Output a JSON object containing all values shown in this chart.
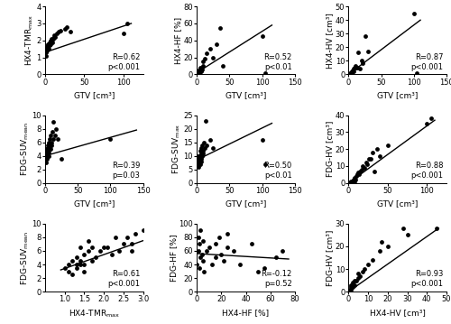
{
  "panels": [
    {
      "xlabel": "GTV [cm³]",
      "ylabel": "HX4-TMR$_\\mathrm{max}$",
      "xlim": [
        0,
        125
      ],
      "ylim": [
        0,
        4
      ],
      "xticks": [
        0,
        50,
        100
      ],
      "yticks": [
        0,
        1,
        2,
        3,
        4
      ],
      "R": "R=0.62",
      "p": "p<0.001",
      "x": [
        1,
        1,
        2,
        2,
        2,
        3,
        3,
        3,
        4,
        4,
        5,
        5,
        5,
        6,
        6,
        7,
        7,
        8,
        9,
        10,
        11,
        12,
        13,
        15,
        17,
        20,
        25,
        28,
        32,
        100,
        105
      ],
      "y": [
        1.1,
        1.3,
        1.5,
        1.6,
        1.4,
        1.5,
        1.6,
        1.7,
        1.6,
        1.8,
        1.5,
        1.7,
        1.8,
        1.7,
        1.9,
        1.8,
        2.0,
        2.1,
        1.9,
        2.1,
        2.2,
        2.3,
        2.2,
        2.4,
        2.5,
        2.6,
        2.7,
        2.8,
        2.5,
        2.4,
        3.0
      ],
      "line_x": [
        0,
        110
      ],
      "line_y": [
        1.3,
        3.0
      ]
    },
    {
      "xlabel": "GTV [cm³]",
      "ylabel": "HX4-HF [%]",
      "xlim": [
        0,
        150
      ],
      "ylim": [
        0,
        80
      ],
      "xticks": [
        0,
        50,
        100,
        150
      ],
      "yticks": [
        0,
        20,
        40,
        60,
        80
      ],
      "R": "R=0.52",
      "p": "p<0.01",
      "x": [
        1,
        1,
        1,
        2,
        2,
        2,
        2,
        3,
        3,
        4,
        4,
        5,
        5,
        6,
        7,
        8,
        9,
        10,
        12,
        15,
        20,
        25,
        30,
        35,
        40,
        100,
        105
      ],
      "y": [
        0,
        1,
        2,
        0,
        1,
        3,
        5,
        2,
        4,
        1,
        3,
        5,
        8,
        4,
        7,
        6,
        10,
        15,
        18,
        25,
        30,
        20,
        35,
        55,
        10,
        45,
        2
      ],
      "line_x": [
        0,
        115
      ],
      "line_y": [
        2,
        58
      ]
    },
    {
      "xlabel": "GTV [cm³]",
      "ylabel": "HX4-HV [cm³]",
      "xlim": [
        0,
        150
      ],
      "ylim": [
        0,
        50
      ],
      "xticks": [
        0,
        50,
        100,
        150
      ],
      "yticks": [
        0,
        10,
        20,
        30,
        40,
        50
      ],
      "R": "R=0.87",
      "p": "p<0.001",
      "x": [
        1,
        1,
        2,
        2,
        2,
        3,
        3,
        4,
        4,
        5,
        5,
        6,
        7,
        8,
        9,
        10,
        11,
        13,
        15,
        18,
        20,
        22,
        25,
        30,
        100,
        105
      ],
      "y": [
        0,
        0.5,
        0,
        0.5,
        1,
        0,
        1,
        0.5,
        1,
        2,
        1,
        3,
        2,
        4,
        5,
        6,
        5,
        5,
        16,
        4,
        10,
        8,
        28,
        17,
        45,
        1
      ],
      "line_x": [
        0,
        110
      ],
      "line_y": [
        0,
        40
      ]
    },
    {
      "xlabel": "GTV [cm³]",
      "ylabel": "FDG-SUV$_\\mathrm{mean}$",
      "xlim": [
        0,
        150
      ],
      "ylim": [
        0,
        10
      ],
      "xticks": [
        0,
        50,
        100,
        150
      ],
      "yticks": [
        0,
        2,
        4,
        6,
        8,
        10
      ],
      "R": "R=0.39",
      "p": "p=0.03",
      "x": [
        1,
        1,
        1,
        2,
        2,
        2,
        2,
        3,
        3,
        3,
        4,
        4,
        5,
        5,
        5,
        6,
        6,
        7,
        7,
        8,
        8,
        9,
        10,
        11,
        12,
        13,
        15,
        17,
        20,
        25,
        100
      ],
      "y": [
        3.5,
        4.0,
        4.5,
        3.0,
        4.0,
        4.5,
        5.0,
        3.5,
        4.0,
        5.0,
        4.5,
        5.5,
        4.0,
        5.0,
        6.0,
        4.5,
        5.5,
        5.0,
        6.5,
        5.0,
        7.0,
        5.5,
        6.0,
        7.5,
        6.5,
        9.0,
        7.0,
        8.0,
        6.5,
        3.5,
        6.5
      ],
      "line_x": [
        0,
        140
      ],
      "line_y": [
        4.0,
        7.8
      ]
    },
    {
      "xlabel": "GTV [cm³]",
      "ylabel": "FDG-SUV$_\\mathrm{max}$",
      "xlim": [
        0,
        150
      ],
      "ylim": [
        0,
        25
      ],
      "xticks": [
        0,
        50,
        100,
        150
      ],
      "yticks": [
        0,
        5,
        10,
        15,
        20,
        25
      ],
      "R": "R=0.50",
      "p": "p<0.01",
      "x": [
        1,
        1,
        1,
        2,
        2,
        2,
        2,
        3,
        3,
        3,
        4,
        4,
        5,
        5,
        5,
        6,
        6,
        7,
        7,
        8,
        8,
        9,
        10,
        11,
        12,
        13,
        15,
        20,
        25,
        100,
        105
      ],
      "y": [
        7,
        8,
        9,
        6,
        8,
        9,
        10,
        7,
        9,
        10,
        8,
        10,
        7,
        9,
        12,
        8,
        11,
        9,
        13,
        10,
        14,
        11,
        12,
        15,
        13,
        23,
        14,
        16,
        13,
        16,
        7
      ],
      "line_x": [
        0,
        115
      ],
      "line_y": [
        8.5,
        22
      ]
    },
    {
      "xlabel": "GTV [cm³]",
      "ylabel": "FDG-HV [cm³]",
      "xlim": [
        0,
        125
      ],
      "ylim": [
        0,
        40
      ],
      "xticks": [
        0,
        50,
        100
      ],
      "yticks": [
        0,
        10,
        20,
        30,
        40
      ],
      "R": "R=0.88",
      "p": "p<0.001",
      "x": [
        1,
        2,
        2,
        3,
        3,
        4,
        5,
        5,
        6,
        7,
        8,
        9,
        10,
        11,
        12,
        13,
        15,
        17,
        18,
        20,
        22,
        24,
        26,
        28,
        30,
        33,
        36,
        40,
        50,
        100,
        105
      ],
      "y": [
        0,
        0,
        0.5,
        0,
        1,
        0,
        0.5,
        1,
        2,
        1,
        3,
        2,
        4,
        5,
        6,
        5,
        7,
        8,
        10,
        9,
        12,
        11,
        14,
        14,
        18,
        7,
        20,
        16,
        22,
        35,
        38
      ],
      "line_x": [
        0,
        110
      ],
      "line_y": [
        0,
        37
      ]
    },
    {
      "xlabel": "HX4-TMR$_\\mathrm{max}$",
      "ylabel": "FDG-SUV$_\\mathrm{mean}$",
      "xlim": [
        0.5,
        3.0
      ],
      "ylim": [
        0,
        10
      ],
      "xticks": [
        1.0,
        1.5,
        2.0,
        2.5,
        3.0
      ],
      "yticks": [
        0,
        2,
        4,
        6,
        8,
        10
      ],
      "R": "R=0.61",
      "p": "p<0.001",
      "x": [
        1.0,
        1.1,
        1.1,
        1.2,
        1.2,
        1.3,
        1.3,
        1.3,
        1.4,
        1.4,
        1.4,
        1.5,
        1.5,
        1.5,
        1.6,
        1.6,
        1.7,
        1.7,
        1.8,
        1.9,
        2.0,
        2.1,
        2.2,
        2.3,
        2.4,
        2.5,
        2.6,
        2.7,
        2.8,
        2.7,
        3.0
      ],
      "y": [
        3.5,
        4.0,
        3.0,
        4.5,
        2.5,
        4.0,
        5.0,
        3.5,
        4.5,
        6.5,
        4.0,
        4.0,
        5.5,
        3.0,
        6.0,
        7.5,
        6.5,
        4.5,
        5.0,
        6.0,
        6.5,
        6.5,
        5.5,
        8.0,
        6.0,
        7.0,
        8.0,
        7.0,
        8.5,
        6.0,
        9.0
      ],
      "line_x": [
        0.9,
        3.0
      ],
      "line_y": [
        3.2,
        7.5
      ]
    },
    {
      "xlabel": "HX4-HF [%]",
      "ylabel": "FDG-HF [%]",
      "xlim": [
        0,
        80
      ],
      "ylim": [
        0,
        100
      ],
      "xticks": [
        0,
        20,
        40,
        60,
        80
      ],
      "yticks": [
        0,
        20,
        40,
        60,
        80,
        100
      ],
      "R": "R=-0.12",
      "p": "p=0.52",
      "x": [
        0,
        1,
        1,
        2,
        2,
        3,
        3,
        4,
        5,
        5,
        6,
        8,
        10,
        12,
        15,
        15,
        18,
        20,
        22,
        25,
        25,
        30,
        35,
        45,
        50,
        55,
        65,
        70
      ],
      "y": [
        40,
        60,
        80,
        35,
        70,
        50,
        90,
        55,
        45,
        75,
        30,
        60,
        65,
        40,
        70,
        50,
        80,
        55,
        45,
        65,
        85,
        60,
        40,
        70,
        30,
        35,
        50,
        60
      ],
      "line_x": [
        0,
        75
      ],
      "line_y": [
        56,
        48
      ]
    },
    {
      "xlabel": "HX4-HV [cm³]",
      "ylabel": "FDG-HV [cm³]",
      "xlim": [
        0,
        50
      ],
      "ylim": [
        0,
        30
      ],
      "xticks": [
        0,
        10,
        20,
        30,
        40,
        50
      ],
      "yticks": [
        0,
        10,
        20,
        30
      ],
      "R": "R=0.93",
      "p": "p<0.001",
      "x": [
        0,
        0,
        0.5,
        0.5,
        1,
        1,
        1,
        2,
        2,
        3,
        3,
        4,
        5,
        5,
        6,
        7,
        8,
        10,
        12,
        16,
        17,
        20,
        28,
        30,
        45
      ],
      "y": [
        0,
        0.5,
        0.5,
        1,
        1,
        2,
        3,
        2,
        4,
        3,
        5,
        5,
        6,
        8,
        7,
        9,
        10,
        12,
        14,
        18,
        22,
        20,
        28,
        25,
        28
      ],
      "line_x": [
        0,
        46
      ],
      "line_y": [
        0,
        28
      ]
    }
  ],
  "dot_color": "black",
  "dot_size": 12,
  "line_color": "black",
  "line_width": 1.0,
  "font_size": 6,
  "label_font_size": 6.5,
  "annotation_font_size": 6
}
